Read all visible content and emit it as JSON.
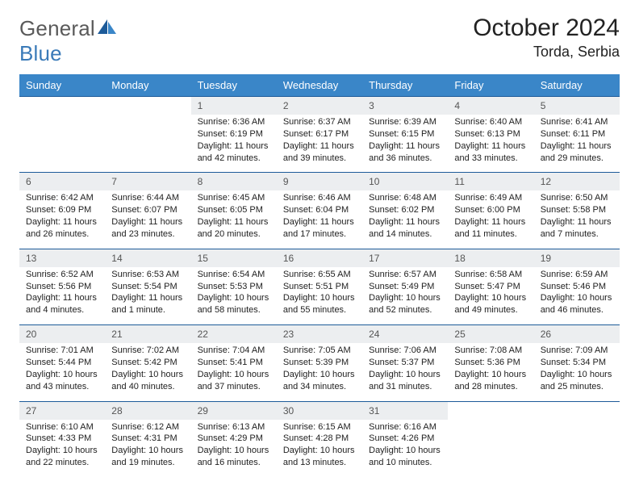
{
  "brand": {
    "part1": "General",
    "part2": "Blue"
  },
  "title": "October 2024",
  "location": "Torda, Serbia",
  "dow": [
    "Sunday",
    "Monday",
    "Tuesday",
    "Wednesday",
    "Thursday",
    "Friday",
    "Saturday"
  ],
  "colors": {
    "header_bg": "#3a86c8",
    "header_text": "#ffffff",
    "daynum_bg": "#eceef0",
    "rule": "#1d5b99",
    "logo_gray": "#5a5a5a",
    "logo_blue": "#3a7ab8"
  },
  "weeks": [
    [
      null,
      null,
      {
        "n": "1",
        "sr": "Sunrise: 6:36 AM",
        "ss": "Sunset: 6:19 PM",
        "dl": "Daylight: 11 hours and 42 minutes."
      },
      {
        "n": "2",
        "sr": "Sunrise: 6:37 AM",
        "ss": "Sunset: 6:17 PM",
        "dl": "Daylight: 11 hours and 39 minutes."
      },
      {
        "n": "3",
        "sr": "Sunrise: 6:39 AM",
        "ss": "Sunset: 6:15 PM",
        "dl": "Daylight: 11 hours and 36 minutes."
      },
      {
        "n": "4",
        "sr": "Sunrise: 6:40 AM",
        "ss": "Sunset: 6:13 PM",
        "dl": "Daylight: 11 hours and 33 minutes."
      },
      {
        "n": "5",
        "sr": "Sunrise: 6:41 AM",
        "ss": "Sunset: 6:11 PM",
        "dl": "Daylight: 11 hours and 29 minutes."
      }
    ],
    [
      {
        "n": "6",
        "sr": "Sunrise: 6:42 AM",
        "ss": "Sunset: 6:09 PM",
        "dl": "Daylight: 11 hours and 26 minutes."
      },
      {
        "n": "7",
        "sr": "Sunrise: 6:44 AM",
        "ss": "Sunset: 6:07 PM",
        "dl": "Daylight: 11 hours and 23 minutes."
      },
      {
        "n": "8",
        "sr": "Sunrise: 6:45 AM",
        "ss": "Sunset: 6:05 PM",
        "dl": "Daylight: 11 hours and 20 minutes."
      },
      {
        "n": "9",
        "sr": "Sunrise: 6:46 AM",
        "ss": "Sunset: 6:04 PM",
        "dl": "Daylight: 11 hours and 17 minutes."
      },
      {
        "n": "10",
        "sr": "Sunrise: 6:48 AM",
        "ss": "Sunset: 6:02 PM",
        "dl": "Daylight: 11 hours and 14 minutes."
      },
      {
        "n": "11",
        "sr": "Sunrise: 6:49 AM",
        "ss": "Sunset: 6:00 PM",
        "dl": "Daylight: 11 hours and 11 minutes."
      },
      {
        "n": "12",
        "sr": "Sunrise: 6:50 AM",
        "ss": "Sunset: 5:58 PM",
        "dl": "Daylight: 11 hours and 7 minutes."
      }
    ],
    [
      {
        "n": "13",
        "sr": "Sunrise: 6:52 AM",
        "ss": "Sunset: 5:56 PM",
        "dl": "Daylight: 11 hours and 4 minutes."
      },
      {
        "n": "14",
        "sr": "Sunrise: 6:53 AM",
        "ss": "Sunset: 5:54 PM",
        "dl": "Daylight: 11 hours and 1 minute."
      },
      {
        "n": "15",
        "sr": "Sunrise: 6:54 AM",
        "ss": "Sunset: 5:53 PM",
        "dl": "Daylight: 10 hours and 58 minutes."
      },
      {
        "n": "16",
        "sr": "Sunrise: 6:55 AM",
        "ss": "Sunset: 5:51 PM",
        "dl": "Daylight: 10 hours and 55 minutes."
      },
      {
        "n": "17",
        "sr": "Sunrise: 6:57 AM",
        "ss": "Sunset: 5:49 PM",
        "dl": "Daylight: 10 hours and 52 minutes."
      },
      {
        "n": "18",
        "sr": "Sunrise: 6:58 AM",
        "ss": "Sunset: 5:47 PM",
        "dl": "Daylight: 10 hours and 49 minutes."
      },
      {
        "n": "19",
        "sr": "Sunrise: 6:59 AM",
        "ss": "Sunset: 5:46 PM",
        "dl": "Daylight: 10 hours and 46 minutes."
      }
    ],
    [
      {
        "n": "20",
        "sr": "Sunrise: 7:01 AM",
        "ss": "Sunset: 5:44 PM",
        "dl": "Daylight: 10 hours and 43 minutes."
      },
      {
        "n": "21",
        "sr": "Sunrise: 7:02 AM",
        "ss": "Sunset: 5:42 PM",
        "dl": "Daylight: 10 hours and 40 minutes."
      },
      {
        "n": "22",
        "sr": "Sunrise: 7:04 AM",
        "ss": "Sunset: 5:41 PM",
        "dl": "Daylight: 10 hours and 37 minutes."
      },
      {
        "n": "23",
        "sr": "Sunrise: 7:05 AM",
        "ss": "Sunset: 5:39 PM",
        "dl": "Daylight: 10 hours and 34 minutes."
      },
      {
        "n": "24",
        "sr": "Sunrise: 7:06 AM",
        "ss": "Sunset: 5:37 PM",
        "dl": "Daylight: 10 hours and 31 minutes."
      },
      {
        "n": "25",
        "sr": "Sunrise: 7:08 AM",
        "ss": "Sunset: 5:36 PM",
        "dl": "Daylight: 10 hours and 28 minutes."
      },
      {
        "n": "26",
        "sr": "Sunrise: 7:09 AM",
        "ss": "Sunset: 5:34 PM",
        "dl": "Daylight: 10 hours and 25 minutes."
      }
    ],
    [
      {
        "n": "27",
        "sr": "Sunrise: 6:10 AM",
        "ss": "Sunset: 4:33 PM",
        "dl": "Daylight: 10 hours and 22 minutes."
      },
      {
        "n": "28",
        "sr": "Sunrise: 6:12 AM",
        "ss": "Sunset: 4:31 PM",
        "dl": "Daylight: 10 hours and 19 minutes."
      },
      {
        "n": "29",
        "sr": "Sunrise: 6:13 AM",
        "ss": "Sunset: 4:29 PM",
        "dl": "Daylight: 10 hours and 16 minutes."
      },
      {
        "n": "30",
        "sr": "Sunrise: 6:15 AM",
        "ss": "Sunset: 4:28 PM",
        "dl": "Daylight: 10 hours and 13 minutes."
      },
      {
        "n": "31",
        "sr": "Sunrise: 6:16 AM",
        "ss": "Sunset: 4:26 PM",
        "dl": "Daylight: 10 hours and 10 minutes."
      },
      null,
      null
    ]
  ]
}
